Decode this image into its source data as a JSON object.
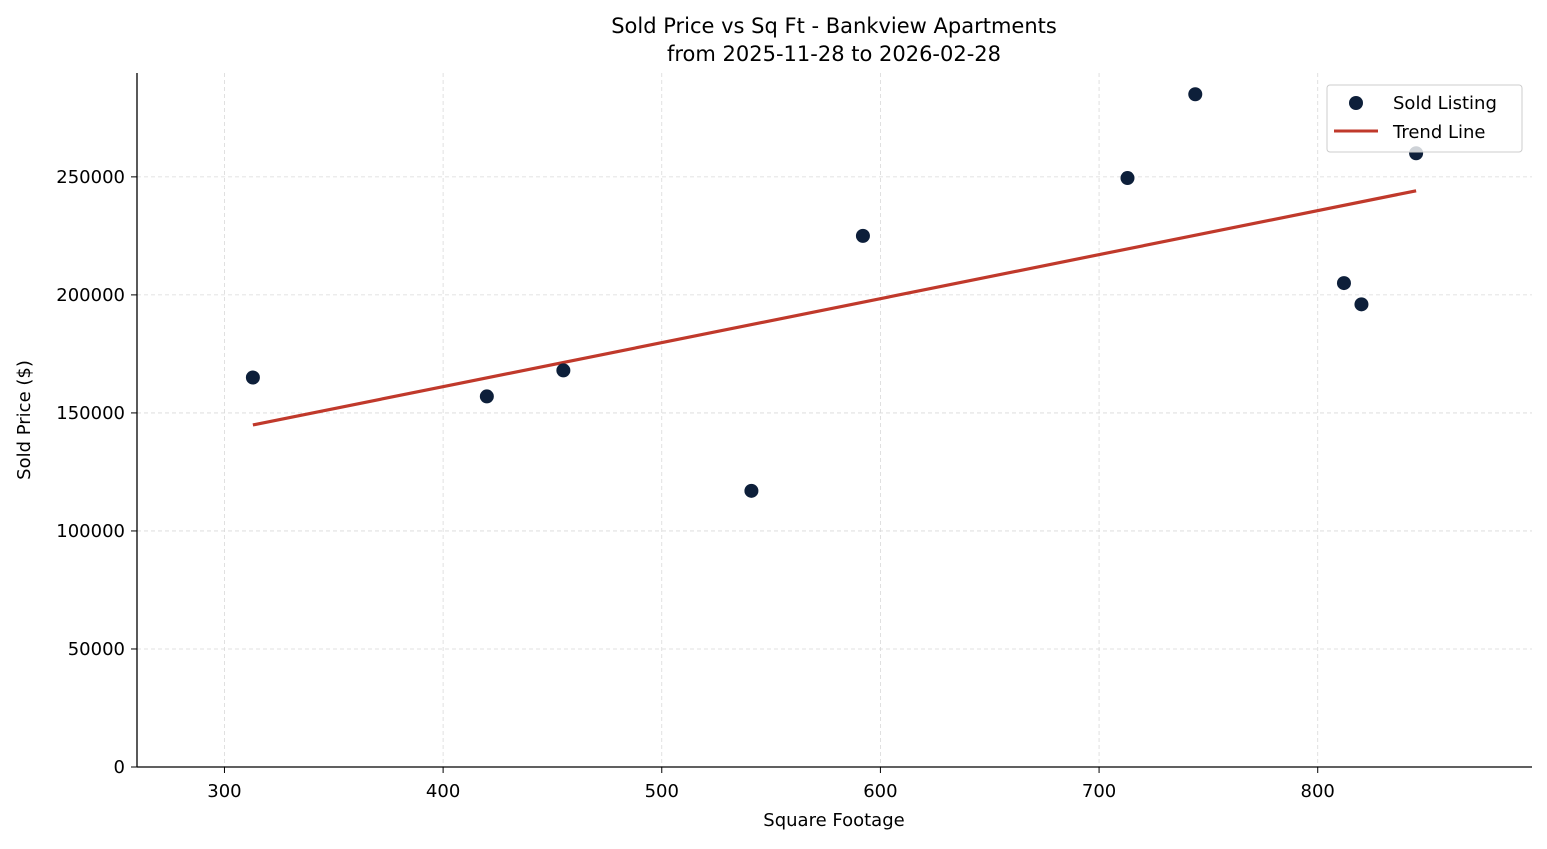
{
  "chart_data": {
    "type": "scatter",
    "title": "Sold Price vs Sq Ft - Bankview Apartments",
    "subtitle": "from 2025-11-28 to 2026-02-28",
    "xlabel": "Square Footage",
    "ylabel": "Sold Price ($)",
    "xlim": [
      260,
      898
    ],
    "ylim": [
      0,
      294000
    ],
    "xticks": [
      300,
      400,
      500,
      600,
      700,
      800
    ],
    "yticks": [
      0,
      50000,
      100000,
      150000,
      200000,
      250000
    ],
    "grid": true,
    "legend_position": "top-right",
    "series": [
      {
        "name": "Sold Listing",
        "kind": "scatter",
        "color": "#0d1f3a",
        "points": [
          {
            "x": 313,
            "y": 165000
          },
          {
            "x": 420,
            "y": 157000
          },
          {
            "x": 455,
            "y": 168000
          },
          {
            "x": 541,
            "y": 117000
          },
          {
            "x": 592,
            "y": 225000
          },
          {
            "x": 713,
            "y": 249500
          },
          {
            "x": 744,
            "y": 285000
          },
          {
            "x": 812,
            "y": 205000
          },
          {
            "x": 820,
            "y": 196000
          },
          {
            "x": 845,
            "y": 260000
          }
        ]
      },
      {
        "name": "Trend Line",
        "kind": "line",
        "color": "#c0392b",
        "points": [
          {
            "x": 313,
            "y": 144900
          },
          {
            "x": 845,
            "y": 244100
          }
        ]
      }
    ]
  }
}
